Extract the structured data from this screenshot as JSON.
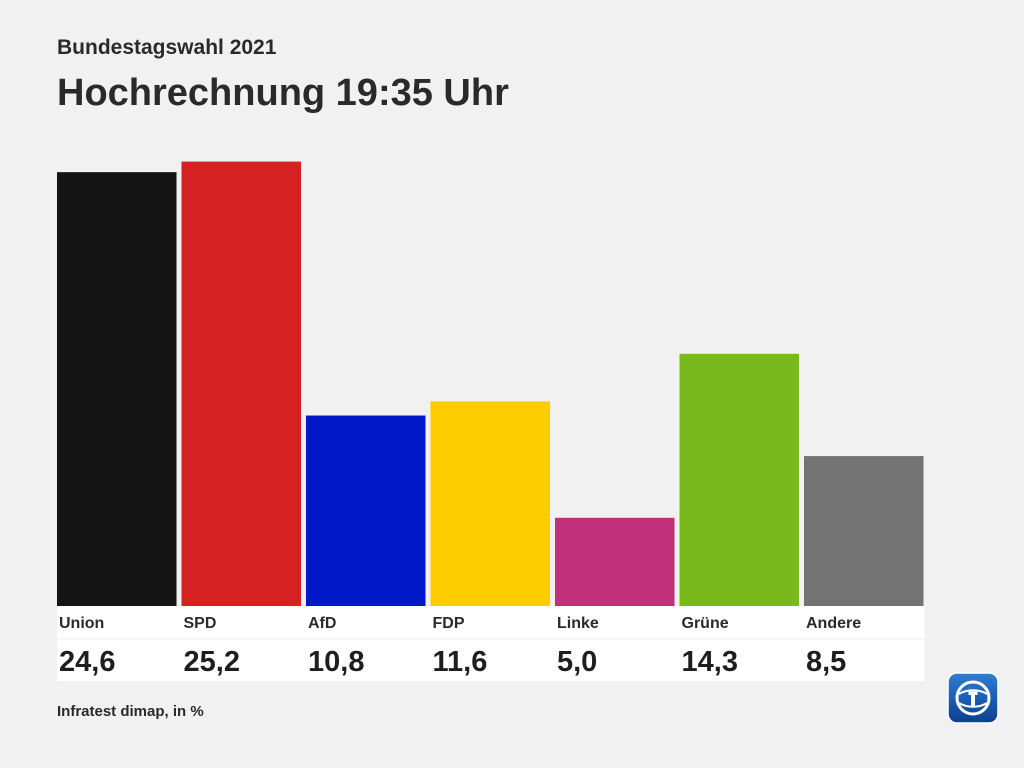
{
  "header": {
    "subtitle": "Bundestagswahl 2021",
    "title": "Hochrechnung 19:35 Uhr"
  },
  "footer": {
    "source": "Infratest dimap, in %"
  },
  "logo": {
    "icon": "tagesschau-logo-icon"
  },
  "chart_data": {
    "type": "bar",
    "categories": [
      "Union",
      "SPD",
      "AfD",
      "FDP",
      "Linke",
      "Grüne",
      "Andere"
    ],
    "values": [
      24.6,
      25.2,
      10.8,
      11.6,
      5.0,
      14.3,
      8.5
    ],
    "value_labels": [
      "24,6",
      "25,2",
      "10,8",
      "11,6",
      "5,0",
      "14,3",
      "8,5"
    ],
    "colors": [
      "#141414",
      "#d52121",
      "#0019c8",
      "#ffcc00",
      "#c1307a",
      "#7ab91c",
      "#737373"
    ],
    "ylim": [
      0,
      25.8
    ],
    "grid": false,
    "legend": "none"
  }
}
